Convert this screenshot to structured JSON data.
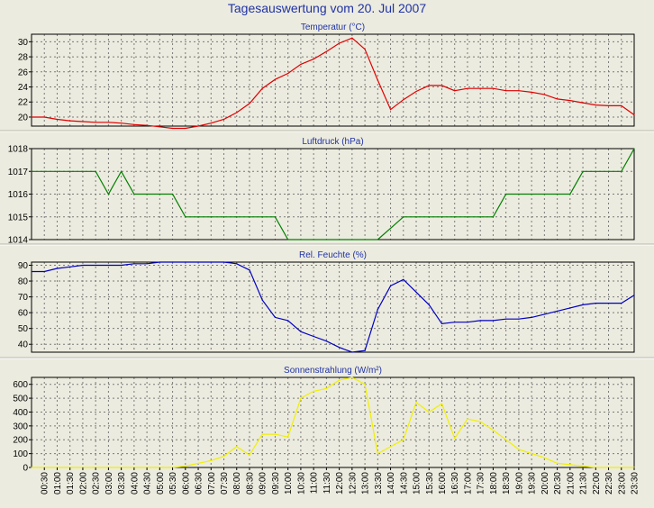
{
  "title": "Tagesauswertung vom 20. Jul 2007",
  "colors": {
    "background": "#ecebdf",
    "axis": "#000000",
    "grid": "#7a7a7a",
    "title": "#1f33a6"
  },
  "time_labels": [
    "00:30",
    "01:00",
    "01:30",
    "02:00",
    "02:30",
    "03:00",
    "03:30",
    "04:00",
    "04:30",
    "05:00",
    "05:30",
    "06:00",
    "06:30",
    "07:00",
    "07:30",
    "08:00",
    "08:30",
    "09:00",
    "09:30",
    "10:00",
    "10:30",
    "11:00",
    "11:30",
    "12:00",
    "12:30",
    "13:00",
    "13:30",
    "14:00",
    "14:30",
    "15:00",
    "15:30",
    "16:00",
    "16:30",
    "17:00",
    "17:30",
    "18:00",
    "18:30",
    "19:00",
    "19:30",
    "20:00",
    "20:30",
    "21:00",
    "21:30",
    "22:00",
    "22:30",
    "23:00",
    "23:30"
  ],
  "chart_data": [
    {
      "type": "line",
      "title": "Temperatur (°C)",
      "ylim": [
        18.8,
        31
      ],
      "yticks": [
        20,
        22,
        24,
        26,
        28,
        30
      ],
      "grid": true,
      "series": [
        {
          "color": "#e00000",
          "values": [
            20.0,
            20.0,
            19.7,
            19.5,
            19.4,
            19.3,
            19.3,
            19.2,
            19.0,
            18.9,
            18.7,
            18.5,
            18.5,
            18.8,
            19.2,
            19.7,
            20.6,
            21.8,
            23.8,
            25.0,
            25.8,
            27.0,
            27.7,
            28.7,
            29.8,
            30.5,
            29.0,
            24.9,
            21.0,
            22.3,
            23.4,
            24.2,
            24.2,
            23.5,
            23.8,
            23.8,
            23.8,
            23.5,
            23.5,
            23.3,
            23.0,
            22.4,
            22.2,
            21.9,
            21.6,
            21.5,
            21.5,
            20.3
          ]
        }
      ]
    },
    {
      "type": "line",
      "title": "Luftdruck (hPa)",
      "ylim": [
        1014,
        1018
      ],
      "yticks": [
        1014,
        1015,
        1016,
        1017,
        1018
      ],
      "grid": true,
      "series": [
        {
          "color": "#008000",
          "values": [
            1017,
            1017,
            1017,
            1017,
            1017,
            1017,
            1016,
            1017,
            1016,
            1016,
            1016,
            1016,
            1015,
            1015,
            1015,
            1015,
            1015,
            1015,
            1015,
            1015,
            1014,
            1014,
            1014,
            1014,
            1014,
            1014,
            1014,
            1014,
            1014.5,
            1015,
            1015,
            1015,
            1015,
            1015,
            1015,
            1015,
            1015,
            1016,
            1016,
            1016,
            1016,
            1016,
            1016,
            1017,
            1017,
            1017,
            1017,
            1018
          ]
        }
      ]
    },
    {
      "type": "line",
      "title": "Rel. Feuchte (%)",
      "ylim": [
        35,
        92
      ],
      "yticks": [
        40,
        50,
        60,
        70,
        80,
        90
      ],
      "grid": true,
      "series": [
        {
          "color": "#0000c0",
          "values": [
            86,
            86,
            88,
            89,
            90,
            90,
            90,
            90,
            91,
            91,
            92,
            92,
            92,
            92,
            92,
            92,
            91,
            87,
            68,
            57,
            55,
            48,
            45,
            42,
            38,
            35,
            36,
            62,
            77,
            81,
            73,
            65,
            53,
            54,
            54,
            55,
            55,
            56,
            56,
            57,
            59,
            61,
            63,
            65,
            66,
            66,
            66,
            71
          ]
        }
      ]
    },
    {
      "type": "line",
      "title": "Sonnenstrahlung (W/m²)",
      "ylim": [
        0,
        650
      ],
      "yticks": [
        0,
        100,
        200,
        300,
        400,
        500,
        600
      ],
      "grid": true,
      "series": [
        {
          "color": "#f0f000",
          "values": [
            0,
            0,
            0,
            0,
            0,
            0,
            0,
            0,
            0,
            0,
            0,
            0,
            10,
            30,
            50,
            80,
            150,
            90,
            240,
            240,
            220,
            500,
            550,
            570,
            630,
            650,
            600,
            100,
            150,
            200,
            470,
            400,
            460,
            210,
            350,
            330,
            270,
            200,
            130,
            100,
            70,
            30,
            20,
            10,
            0,
            0,
            0,
            0
          ]
        }
      ]
    }
  ]
}
